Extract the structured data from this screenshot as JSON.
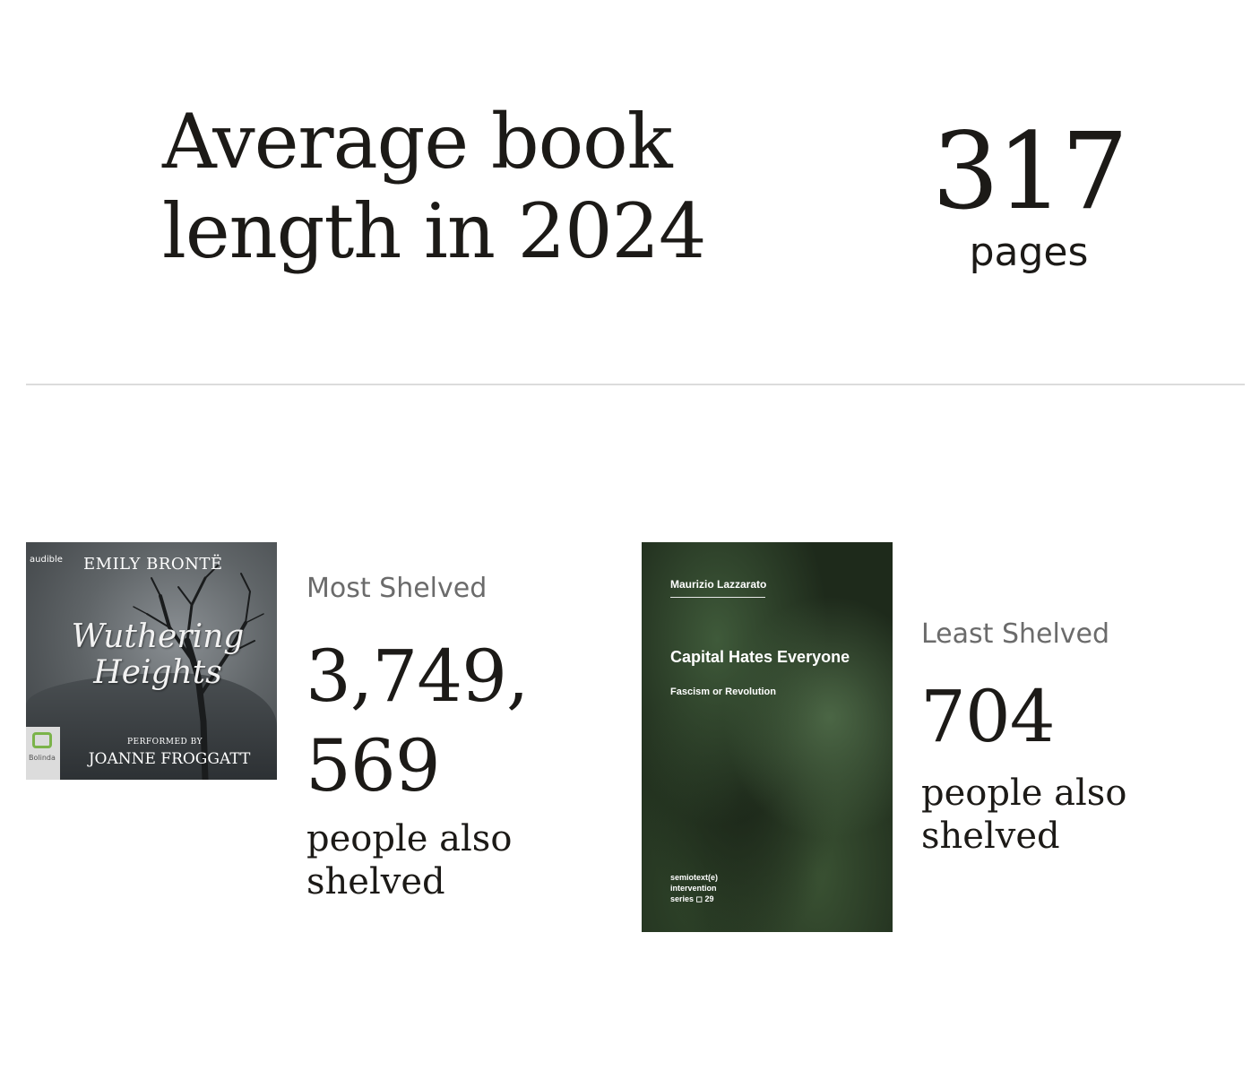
{
  "average": {
    "title": "Average book length in 2024",
    "value": "317",
    "unit": "pages"
  },
  "most_shelved": {
    "label": "Most Shelved",
    "count": "3,749, 569",
    "caption": "people also shelved",
    "cover": {
      "badge": "audible",
      "author": "EMILY BRONTË",
      "title": "Wuthering Heights",
      "performed_label": "PERFORMED BY",
      "narrator": "JOANNE FROGGATT",
      "publisher": "Bolinda"
    }
  },
  "least_shelved": {
    "label": "Least Shelved",
    "count": "704",
    "caption": "people also shelved",
    "cover": {
      "author": "Maurizio Lazzarato",
      "title": "Capital Hates Everyone",
      "subtitle": "Fascism or Revolution",
      "series_line1": "semiotext(e)",
      "series_line2": "intervention",
      "series_line3": "series ◻ 29"
    }
  },
  "colors": {
    "text": "#1c1a17",
    "muted": "#6b6b6b",
    "divider": "#dcdcdc"
  }
}
